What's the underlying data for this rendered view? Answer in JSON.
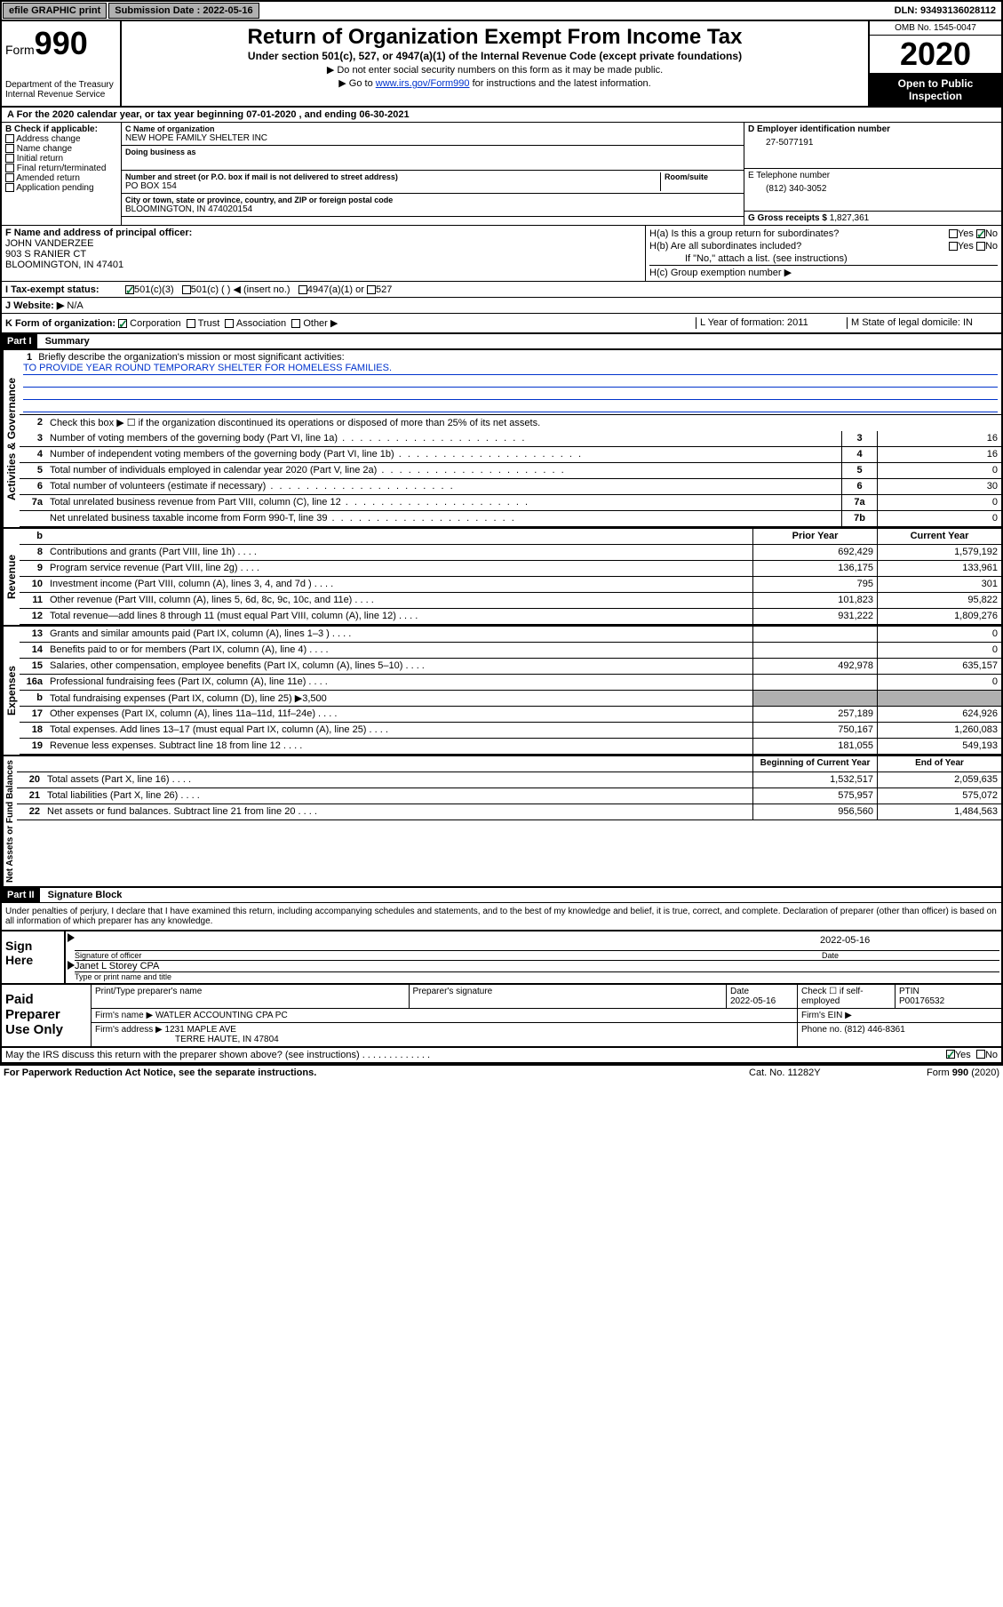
{
  "top": {
    "efile": "efile GRAPHIC print",
    "submission_label": "Submission Date : 2022-05-16",
    "dln": "DLN: 93493136028112"
  },
  "header": {
    "form_word": "Form",
    "form_num": "990",
    "dept": "Department of the Treasury\nInternal Revenue Service",
    "title": "Return of Organization Exempt From Income Tax",
    "sub": "Under section 501(c), 527, or 4947(a)(1) of the Internal Revenue Code (except private foundations)",
    "note1": "▶ Do not enter social security numbers on this form as it may be made public.",
    "note2_a": "▶ Go to ",
    "note2_link": "www.irs.gov/Form990",
    "note2_b": " for instructions and the latest information.",
    "omb": "OMB No. 1545-0047",
    "year": "2020",
    "open_public": "Open to Public Inspection"
  },
  "taxyear": "A For the 2020 calendar year, or tax year beginning 07-01-2020    , and ending 06-30-2021",
  "b": {
    "label": "B Check if applicable:",
    "items": [
      "Address change",
      "Name change",
      "Initial return",
      "Final return/terminated",
      "Amended return",
      "Application pending"
    ]
  },
  "c": {
    "name_label": "C Name of organization",
    "name": "NEW HOPE FAMILY SHELTER INC",
    "dba_label": "Doing business as",
    "addr_label": "Number and street (or P.O. box if mail is not delivered to street address)",
    "room_label": "Room/suite",
    "addr": "PO BOX 154",
    "city_label": "City or town, state or province, country, and ZIP or foreign postal code",
    "city": "BLOOMINGTON, IN  474020154"
  },
  "d": {
    "label": "D Employer identification number",
    "val": "27-5077191"
  },
  "e": {
    "label": "E Telephone number",
    "val": "(812) 340-3052"
  },
  "g": {
    "label": "G Gross receipts $",
    "val": "1,827,361"
  },
  "f": {
    "label": "F  Name and address of principal officer:",
    "name": "JOHN VANDERZEE",
    "addr1": "903 S RANIER CT",
    "addr2": "BLOOMINGTON, IN  47401"
  },
  "h": {
    "a": "H(a)  Is this a group return for subordinates?",
    "b": "H(b)  Are all subordinates included?",
    "note": "If \"No,\" attach a list. (see instructions)",
    "c": "H(c)  Group exemption number ▶",
    "yes": "Yes",
    "no": "No"
  },
  "i": {
    "label": "I  Tax-exempt status:",
    "opts": [
      "501(c)(3)",
      "501(c) (  ) ◀ (insert no.)",
      "4947(a)(1) or",
      "527"
    ]
  },
  "j": {
    "label": "J  Website: ▶",
    "val": "N/A"
  },
  "k": {
    "label": "K Form of organization:",
    "opts": [
      "Corporation",
      "Trust",
      "Association",
      "Other ▶"
    ],
    "l": "L Year of formation: 2011",
    "m": "M State of legal domicile: IN"
  },
  "part1": {
    "header": "Part I",
    "title": "Summary"
  },
  "summary": {
    "q1": "Briefly describe the organization's mission or most significant activities:",
    "mission": "TO PROVIDE YEAR ROUND TEMPORARY SHELTER FOR HOMELESS FAMILIES.",
    "q2": "Check this box ▶ ☐ if the organization discontinued its operations or disposed of more than 25% of its net assets.",
    "rows": [
      {
        "n": "3",
        "t": "Number of voting members of the governing body (Part VI, line 1a)",
        "b": "3",
        "v": "16"
      },
      {
        "n": "4",
        "t": "Number of independent voting members of the governing body (Part VI, line 1b)",
        "b": "4",
        "v": "16"
      },
      {
        "n": "5",
        "t": "Total number of individuals employed in calendar year 2020 (Part V, line 2a)",
        "b": "5",
        "v": "0"
      },
      {
        "n": "6",
        "t": "Total number of volunteers (estimate if necessary)",
        "b": "6",
        "v": "30"
      },
      {
        "n": "7a",
        "t": "Total unrelated business revenue from Part VIII, column (C), line 12",
        "b": "7a",
        "v": "0"
      },
      {
        "n": "",
        "t": "Net unrelated business taxable income from Form 990-T, line 39",
        "b": "7b",
        "v": "0"
      }
    ]
  },
  "vert": {
    "gov": "Activities & Governance",
    "rev": "Revenue",
    "exp": "Expenses",
    "net": "Net Assets or Fund Balances"
  },
  "cols": {
    "b_blank": "b",
    "prior": "Prior Year",
    "current": "Current Year",
    "begin": "Beginning of Current Year",
    "end": "End of Year"
  },
  "revenue": [
    {
      "n": "8",
      "t": "Contributions and grants (Part VIII, line 1h)",
      "p": "692,429",
      "c": "1,579,192"
    },
    {
      "n": "9",
      "t": "Program service revenue (Part VIII, line 2g)",
      "p": "136,175",
      "c": "133,961"
    },
    {
      "n": "10",
      "t": "Investment income (Part VIII, column (A), lines 3, 4, and 7d )",
      "p": "795",
      "c": "301"
    },
    {
      "n": "11",
      "t": "Other revenue (Part VIII, column (A), lines 5, 6d, 8c, 9c, 10c, and 11e)",
      "p": "101,823",
      "c": "95,822"
    },
    {
      "n": "12",
      "t": "Total revenue—add lines 8 through 11 (must equal Part VIII, column (A), line 12)",
      "p": "931,222",
      "c": "1,809,276"
    }
  ],
  "expenses": [
    {
      "n": "13",
      "t": "Grants and similar amounts paid (Part IX, column (A), lines 1–3 )",
      "p": "",
      "c": "0"
    },
    {
      "n": "14",
      "t": "Benefits paid to or for members (Part IX, column (A), line 4)",
      "p": "",
      "c": "0"
    },
    {
      "n": "15",
      "t": "Salaries, other compensation, employee benefits (Part IX, column (A), lines 5–10)",
      "p": "492,978",
      "c": "635,157"
    },
    {
      "n": "16a",
      "t": "Professional fundraising fees (Part IX, column (A), line 11e)",
      "p": "",
      "c": "0"
    },
    {
      "n": "b",
      "t": "Total fundraising expenses (Part IX, column (D), line 25) ▶3,500",
      "p": "SHADE",
      "c": "SHADE"
    },
    {
      "n": "17",
      "t": "Other expenses (Part IX, column (A), lines 11a–11d, 11f–24e)",
      "p": "257,189",
      "c": "624,926"
    },
    {
      "n": "18",
      "t": "Total expenses. Add lines 13–17 (must equal Part IX, column (A), line 25)",
      "p": "750,167",
      "c": "1,260,083"
    },
    {
      "n": "19",
      "t": "Revenue less expenses. Subtract line 18 from line 12",
      "p": "181,055",
      "c": "549,193"
    }
  ],
  "netassets": [
    {
      "n": "20",
      "t": "Total assets (Part X, line 16)",
      "p": "1,532,517",
      "c": "2,059,635"
    },
    {
      "n": "21",
      "t": "Total liabilities (Part X, line 26)",
      "p": "575,957",
      "c": "575,072"
    },
    {
      "n": "22",
      "t": "Net assets or fund balances. Subtract line 21 from line 20",
      "p": "956,560",
      "c": "1,484,563"
    }
  ],
  "part2": {
    "header": "Part II",
    "title": "Signature Block"
  },
  "sig": {
    "decl": "Under penalties of perjury, I declare that I have examined this return, including accompanying schedules and statements, and to the best of my knowledge and belief, it is true, correct, and complete. Declaration of preparer (other than officer) is based on all information of which preparer has any knowledge.",
    "sign_here": "Sign Here",
    "sig_officer": "Signature of officer",
    "date": "2022-05-16",
    "date_label": "Date",
    "name": "Janet L Storey CPA",
    "name_label": "Type or print name and title"
  },
  "paid": {
    "label": "Paid Preparer Use Only",
    "h1": "Print/Type preparer's name",
    "h2": "Preparer's signature",
    "h3": "Date",
    "h3v": "2022-05-16",
    "h4": "Check ☐ if self-employed",
    "h5": "PTIN",
    "h5v": "P00176532",
    "firm_label": "Firm's name   ▶",
    "firm": "WATLER ACCOUNTING CPA PC",
    "ein_label": "Firm's EIN ▶",
    "addr_label": "Firm's address ▶",
    "addr1": "1231 MAPLE AVE",
    "addr2": "TERRE HAUTE, IN  47804",
    "phone_label": "Phone no.",
    "phone": "(812) 446-8361"
  },
  "footer": {
    "q": "May the IRS discuss this return with the preparer shown above? (see instructions)",
    "yes": "Yes",
    "no": "No",
    "paperwork": "For Paperwork Reduction Act Notice, see the separate instructions.",
    "cat": "Cat. No. 11282Y",
    "form": "Form 990 (2020)"
  }
}
